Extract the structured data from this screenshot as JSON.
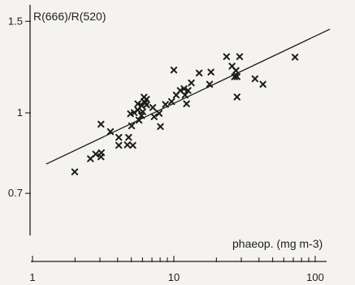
{
  "chart_data": {
    "type": "scatter",
    "title": "",
    "ylabel": "R(666)/R(520)",
    "xlabel": "phaeop. (mg m-3)",
    "x_scale": "log",
    "y_scale": "log",
    "xlim": [
      1,
      130
    ],
    "ylim": [
      0.69,
      1.54
    ],
    "x_ticks": [
      {
        "value": 1,
        "label": "1"
      },
      {
        "value": 2,
        "label": ""
      },
      {
        "value": 3,
        "label": ""
      },
      {
        "value": 4,
        "label": ""
      },
      {
        "value": 5,
        "label": ""
      },
      {
        "value": 6,
        "label": ""
      },
      {
        "value": 7,
        "label": ""
      },
      {
        "value": 8,
        "label": ""
      },
      {
        "value": 9,
        "label": ""
      },
      {
        "value": 10,
        "label": "10"
      },
      {
        "value": 20,
        "label": ""
      },
      {
        "value": 30,
        "label": ""
      },
      {
        "value": 40,
        "label": ""
      },
      {
        "value": 50,
        "label": ""
      },
      {
        "value": 60,
        "label": ""
      },
      {
        "value": 70,
        "label": ""
      },
      {
        "value": 80,
        "label": ""
      },
      {
        "value": 90,
        "label": ""
      },
      {
        "value": 100,
        "label": "100"
      }
    ],
    "y_ticks": [
      {
        "value": 0.7,
        "label": "0.7"
      },
      {
        "value": 1.0,
        "label": "1"
      },
      {
        "value": 1.5,
        "label": "1.5"
      }
    ],
    "series": [
      {
        "marker": "x",
        "x": [
          1.99,
          2.57,
          2.8,
          3.05,
          3.07,
          3.05,
          3.56,
          4.08,
          4.08,
          4.69,
          4.79,
          4.94,
          5.03,
          5.13,
          5.24,
          5.56,
          5.56,
          5.67,
          5.91,
          5.91,
          6.03,
          6.15,
          6.15,
          6.28,
          6.41,
          6.41,
          7.1,
          7.26,
          7.87,
          8.04,
          8.72,
          9.64,
          10.0,
          10.4,
          11.1,
          11.8,
          12.0,
          12.3,
          12.6,
          13.3,
          15.1,
          17.9,
          18.3,
          23.6,
          25.8,
          26.9,
          27.5,
          28.0,
          28.0,
          29.2,
          37.5,
          42.7,
          72.0
        ],
        "y": [
          0.77,
          0.816,
          0.833,
          0.823,
          0.838,
          0.951,
          0.92,
          0.866,
          0.897,
          0.868,
          0.897,
          0.996,
          0.944,
          0.866,
          1.001,
          1.013,
          1.041,
          0.968,
          0.988,
          1.033,
          1.005,
          1.051,
          1.072,
          1.046,
          1.036,
          1.062,
          1.024,
          0.983,
          0.998,
          0.941,
          1.038,
          1.051,
          1.209,
          1.082,
          1.104,
          1.113,
          1.082,
          1.041,
          1.104,
          1.142,
          1.193,
          1.135,
          1.198,
          1.283,
          1.23,
          1.173,
          1.206,
          1.073,
          1.174,
          1.283,
          1.163,
          1.135,
          1.28
        ]
      }
    ],
    "fit_line": {
      "x": [
        1.25,
        127
      ],
      "y": [
        0.797,
        1.449
      ]
    }
  }
}
